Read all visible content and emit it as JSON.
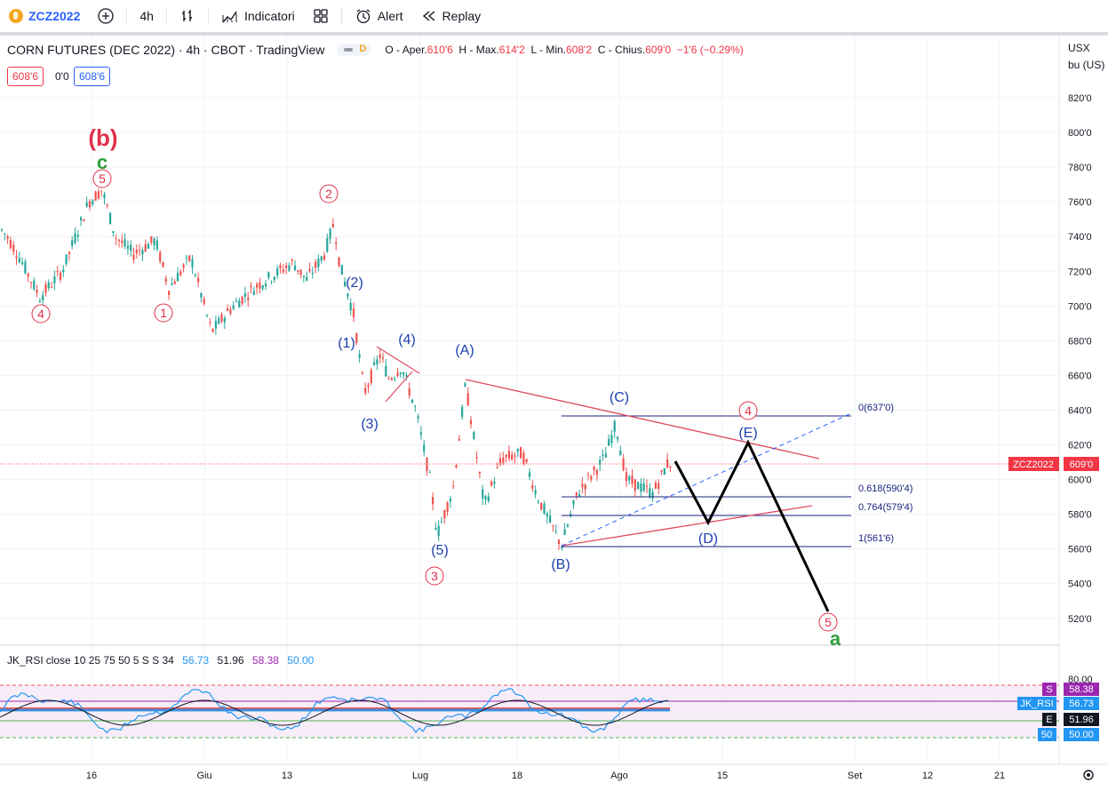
{
  "toolbar": {
    "symbol": "ZCZ2022",
    "interval": "4h",
    "indicators_label": "Indicatori",
    "alert_label": "Alert",
    "replay_label": "Replay"
  },
  "legend": {
    "title": "CORN FUTURES (DEC 2022) · 4h · CBOT · TradingView",
    "pill_letter": "D",
    "o_label": "O",
    "open_label": "Aper.",
    "open": "610'6",
    "h_label": "H",
    "max_label": "Max.",
    "high": "614'2",
    "l_label": "L",
    "min_label": "Min.",
    "low": "608'2",
    "c_label": "C",
    "close_label": "Chius.",
    "close": "609'0",
    "change": "−1'6 (−0.29%)"
  },
  "price_boxes": {
    "sell": "608'6",
    "spread": "0'0",
    "buy": "608'6"
  },
  "price_axis": {
    "currency": "USX",
    "unit": "bu (US)",
    "ticks": [
      "820'0",
      "800'0",
      "780'0",
      "760'0",
      "740'0",
      "720'0",
      "700'0",
      "680'0",
      "660'0",
      "640'0",
      "620'0",
      "600'0",
      "580'0",
      "560'0",
      "540'0",
      "520'0"
    ],
    "last_symbol": "ZCZ2022",
    "last_price": "609'0"
  },
  "time_axis": {
    "labels": [
      "16",
      "Giu",
      "13",
      "Lug",
      "18",
      "Ago",
      "15",
      "Set",
      "12",
      "21"
    ]
  },
  "fib": {
    "lvl0": "0(637'0)",
    "lvl618": "0.618(590'4)",
    "lvl764": "0.764(579'4)",
    "lvl1": "1(561'6)"
  },
  "waves": {
    "b_big": "(b)",
    "c_green": "c",
    "a_green": "a",
    "circle_5_top": "5",
    "circle_4_left": "4",
    "circle_1": "1",
    "circle_2": "2",
    "circle_3": "3",
    "circle_4_right": "4",
    "circle_5_bottom": "5",
    "w1": "(1)",
    "w2": "(2)",
    "w3": "(3)",
    "w4": "(4)",
    "w5": "(5)",
    "wA": "(A)",
    "wB": "(B)",
    "wC": "(C)",
    "wD": "(D)",
    "wE": "(E)"
  },
  "rsi": {
    "name": "JK_RSI",
    "params": "close 10 25 75 50 5 S S 34",
    "v1": "56.73",
    "v2": "51.96",
    "v3": "58.38",
    "v4": "50.00",
    "tick_80": "80.00",
    "tag_s": "S",
    "tag_s_val": "58.38",
    "tag_main": "JK_RSI",
    "tag_main_val": "56.73",
    "tag_e": "E",
    "tag_e_val": "51.96",
    "tag_50": "50",
    "tag_50_val": "50.00"
  },
  "colors": {
    "up": "#26a69a",
    "down": "#ef5350",
    "wave_blue": "#1c3fae",
    "wave_red": "#e0314b",
    "fib_blue": "#1a237e",
    "trend_red": "#e04a5f",
    "rsi_purple": "#9c27b0"
  }
}
